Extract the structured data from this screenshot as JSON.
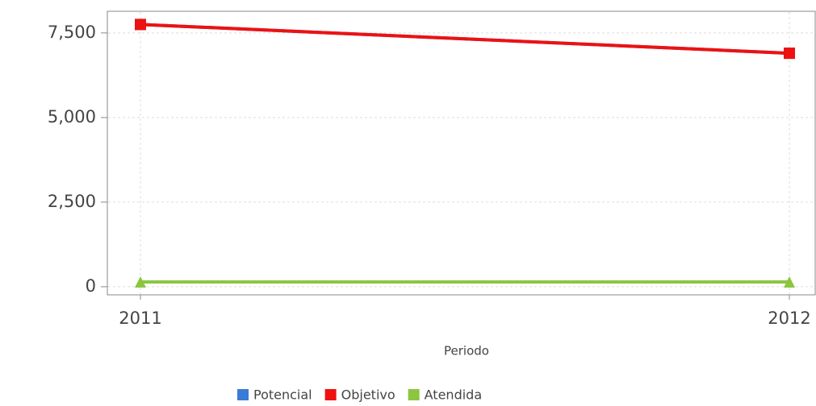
{
  "chart_data": {
    "type": "line",
    "x_label": "Periodo",
    "categories": [
      "2011",
      "2012"
    ],
    "series": [
      {
        "name": "Potencial",
        "color": "#3a7bd5",
        "values": [
          7750,
          6900
        ]
      },
      {
        "name": "Objetivo",
        "color": "#ee1111",
        "values": [
          7750,
          6900
        ]
      },
      {
        "name": "Atendida",
        "color": "#8cc63f",
        "values": [
          140,
          140
        ]
      }
    ],
    "ylim": [
      -240,
      8140
    ],
    "yticks": [
      0,
      {
        "value": 2500,
        "label": "2,500"
      },
      {
        "value": 5000,
        "label": "5,000"
      },
      {
        "value": 7500,
        "label": "7,500"
      }
    ],
    "grid": true
  }
}
